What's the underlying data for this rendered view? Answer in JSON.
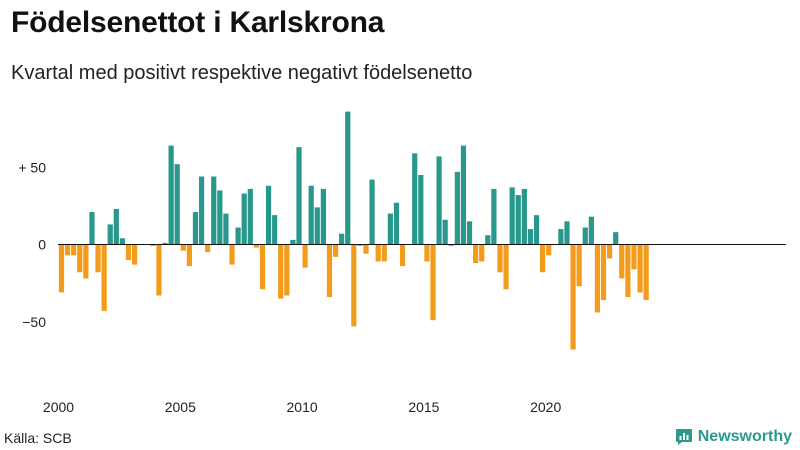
{
  "header": {
    "title": "Födelsenettot i Karlskrona",
    "subtitle": "Kvartal med positivt respektive negativt födelsenetto"
  },
  "footer": {
    "source": "Källa: SCB",
    "brand": "Newsworthy",
    "brand_icon": "newsworthy-logo-icon"
  },
  "colors": {
    "positive": "#27988b",
    "negative": "#f39c1b",
    "brand": "#2b9a8d"
  },
  "chart_data": {
    "type": "bar",
    "title": "Födelsenettot i Karlskrona",
    "subtitle": "Kvartal med positivt respektive negativt födelsenetto",
    "x_start": "2000 Q1",
    "x_ticks": [
      "2000",
      "2005",
      "2010",
      "2015",
      "2020"
    ],
    "y_ticks": [
      50,
      0,
      -50
    ],
    "y_tick_labels": [
      "+ 50",
      "0",
      "−50"
    ],
    "ylim": [
      -85,
      90
    ],
    "grid": "zero-line only",
    "values": [
      -31,
      -7,
      -7,
      -18,
      -22,
      21,
      -18,
      -43,
      13,
      23,
      4,
      -10,
      -13,
      0,
      0,
      -1,
      -33,
      1,
      64,
      52,
      -4,
      -14,
      21,
      44,
      -5,
      44,
      35,
      20,
      -13,
      11,
      33,
      36,
      -2,
      -29,
      38,
      19,
      -35,
      -33,
      3,
      63,
      -15,
      38,
      24,
      36,
      -34,
      -8,
      7,
      86,
      -53,
      -1,
      -6,
      42,
      -11,
      -11,
      20,
      27,
      -14,
      0,
      59,
      45,
      -11,
      -49,
      57,
      16,
      -1,
      47,
      64,
      15,
      -12,
      -11,
      6,
      36,
      -18,
      -29,
      37,
      32,
      36,
      10,
      19,
      -18,
      -7,
      0,
      10,
      15,
      -68,
      -27,
      11,
      18,
      -44,
      -36,
      -9,
      8,
      -22,
      -34,
      -16,
      -31,
      -36
    ]
  }
}
